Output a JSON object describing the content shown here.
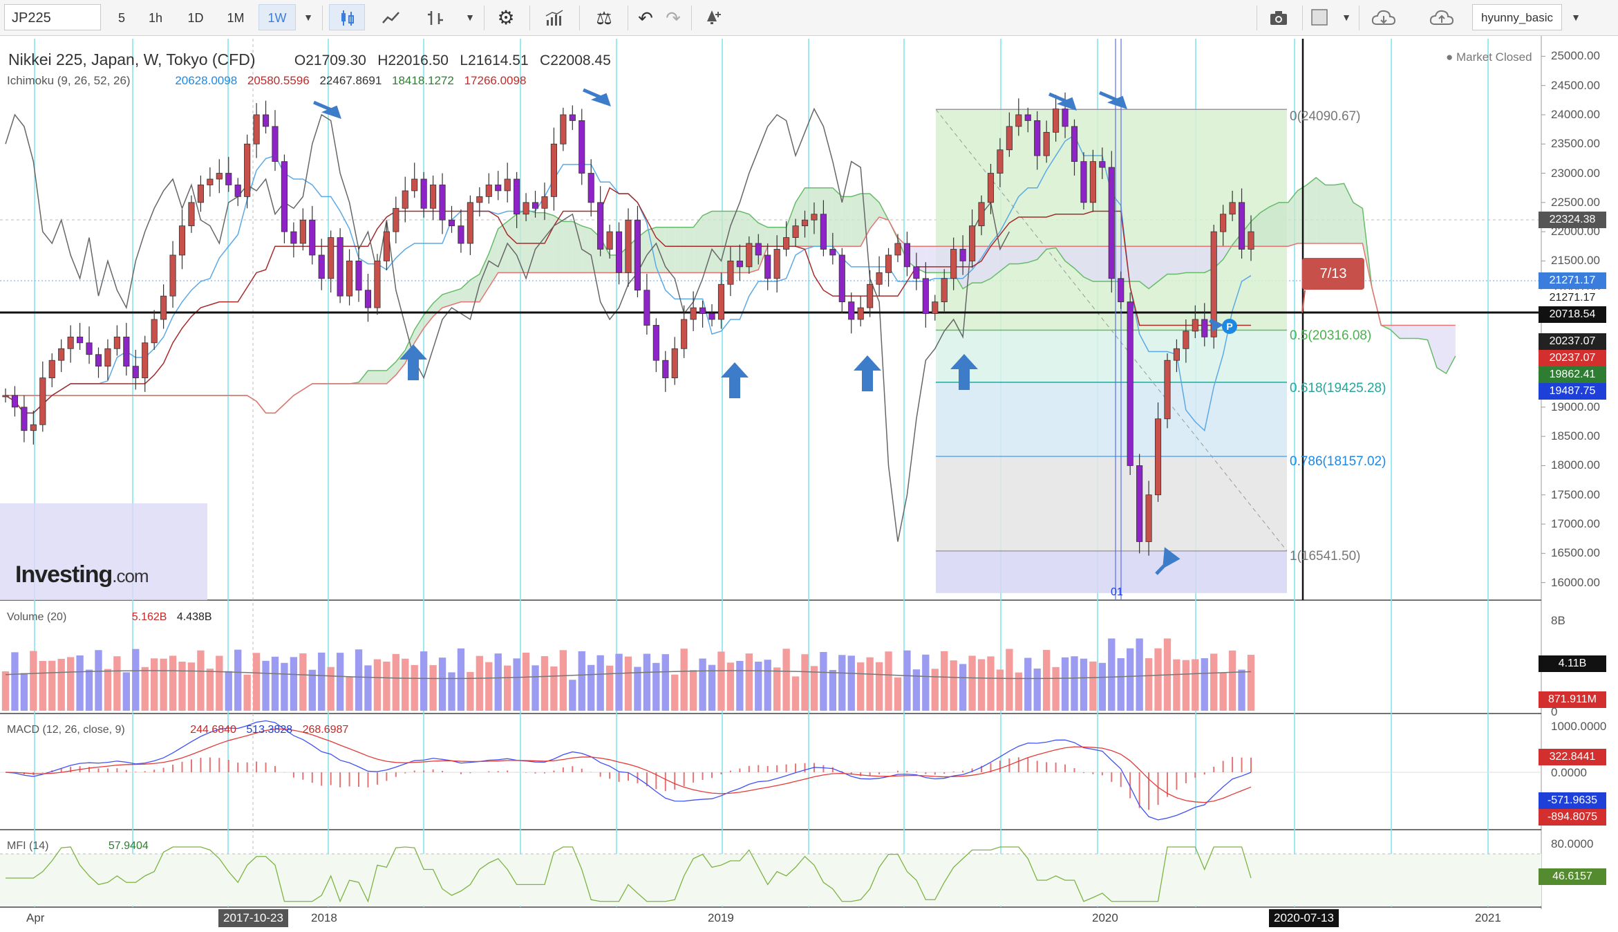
{
  "toolbar": {
    "symbol": "JP225",
    "intervals": [
      "5",
      "1h",
      "1D",
      "1M",
      "1W"
    ],
    "active_interval": "1W",
    "username": "hyunny_basic"
  },
  "legend": {
    "title": "Nikkei 225, Japan, W, Tokyo (CFD)",
    "open": "O21709.30",
    "high": "H22016.50",
    "low": "L21614.51",
    "close": "C22008.45",
    "market_status": "Market Closed"
  },
  "ichimoku": {
    "label": "Ichimoku (9, 26, 52, 26)",
    "v1": "20628.0098",
    "v2": "20580.5596",
    "v3": "22467.8691",
    "v4": "18418.1272",
    "v5": "17266.0098"
  },
  "volume": {
    "label": "Volume (20)",
    "v1": "5.162B",
    "v2": "4.438B",
    "tag1": "4.11B",
    "tag2": "871.911M",
    "axis_top": "8B",
    "axis_bottom": "0"
  },
  "macd": {
    "label": "MACD (12, 26, close, 9)",
    "v1": "244.6840",
    "v2": "513.3828",
    "v3": "268.6987",
    "tag1": "322.8441",
    "tag2": "-571.9635",
    "tag3": "-894.8075",
    "axis": [
      "1000.0000",
      "0.0000"
    ]
  },
  "mfi": {
    "label": "MFI (14)",
    "v1": "57.9404",
    "tag": "46.6157",
    "axis": "80.0000"
  },
  "price_axis": [
    "25000.00",
    "24500.00",
    "24000.00",
    "23500.00",
    "23000.00",
    "22500.00",
    "22000.00",
    "21500.00",
    "21000.00",
    "20500.00",
    "20000.00",
    "19500.00",
    "19000.00",
    "18500.00",
    "18000.00",
    "17500.00",
    "17000.00",
    "16500.00",
    "16000.00"
  ],
  "price_tags": {
    "t22324": "22324.38",
    "t21271a": "21271.17",
    "t21271b": "21271.17",
    "t20718": "20718.54",
    "t20237a": "20237.07",
    "t20237b": "20237.07",
    "t19862": "19862.41",
    "t19487": "19487.75"
  },
  "fib_levels": {
    "f0": "0(24090.67)",
    "f05": "0.5(20316.08)",
    "f0618": "0.618(19425.28)",
    "f0786": "0.786(18157.02)",
    "f1": "1(16541.50)"
  },
  "annotations": {
    "date_box": "7/13",
    "marker": "01",
    "pin": "P"
  },
  "x_axis": {
    "labels": [
      "Apr",
      "2018",
      "2019",
      "2020",
      "2021"
    ],
    "tag_left": "2017-10-23",
    "tag_right": "2020-07-13"
  },
  "logo": {
    "brand": "Investing",
    "suffix": ".com"
  },
  "colors": {
    "up": "#c8504b",
    "down": "#8e24c8",
    "cloud_up": "#c8e6c9",
    "cloud_down": "#e1dcf7",
    "accent": "#3b7ddd"
  },
  "chart_data": {
    "type": "candlestick",
    "title": "Nikkei 225, Japan, W, Tokyo (CFD)",
    "ylim": [
      15700,
      25300
    ],
    "x_range": [
      "2017-04",
      "2021-02"
    ],
    "candles_close_approx": [
      19200,
      19000,
      18600,
      18700,
      19500,
      19800,
      20000,
      20200,
      20100,
      19900,
      19700,
      20000,
      20200,
      19700,
      19500,
      20100,
      20500,
      20900,
      21600,
      22100,
      22500,
      22800,
      22900,
      23000,
      22800,
      22600,
      23500,
      24000,
      23800,
      23200,
      22000,
      21800,
      22200,
      21600,
      21200,
      21900,
      20900,
      21500,
      21000,
      20700,
      21500,
      22000,
      22400,
      22700,
      22900,
      22400,
      22800,
      22200,
      22100,
      21800,
      22500,
      22600,
      22800,
      22700,
      22900,
      22300,
      22500,
      22400,
      22600,
      23500,
      24000,
      23900,
      23000,
      22500,
      21700,
      22000,
      21300,
      22200,
      21000,
      20400,
      19800,
      19500,
      20000,
      20500,
      20700,
      20600,
      20500,
      21100,
      21500,
      21400,
      21800,
      21600,
      21200,
      21700,
      21900,
      22100,
      22200,
      22300,
      21700,
      21600,
      20800,
      20500,
      20700,
      21100,
      21300,
      21600,
      21800,
      21400,
      21200,
      20600,
      20800,
      21200,
      21700,
      21500,
      22100,
      22500,
      23000,
      23400,
      23800,
      24000,
      23900,
      23300,
      23700,
      24100,
      23800,
      23200,
      22500,
      23200,
      23100,
      21200,
      20800,
      18000,
      16700,
      17500,
      18800,
      19800,
      20000,
      20300,
      20500,
      20200,
      22000,
      22300,
      22500,
      21700,
      22000
    ]
  }
}
